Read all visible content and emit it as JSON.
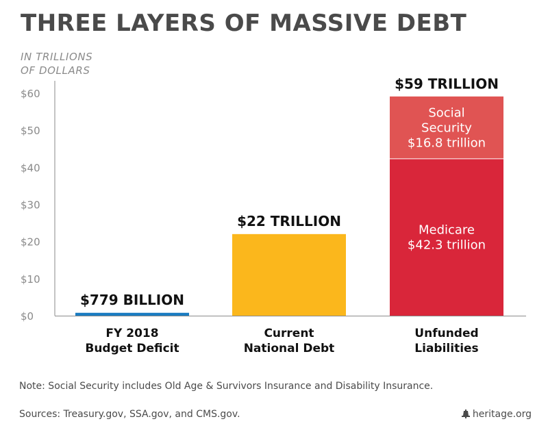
{
  "title": "THREE LAYERS OF MASSIVE DEBT",
  "unit_line1": "IN TRILLIONS",
  "unit_line2": "OF DOLLARS",
  "note": "Note: Social Security includes Old Age & Survivors Insurance and Disability Insurance.",
  "sources": "Sources: Treasury.gov, SSA.gov, and CMS.gov.",
  "brand": "heritage.org",
  "chart_data": {
    "type": "bar",
    "stacked": true,
    "ylim": [
      0,
      60
    ],
    "yticks": [
      0,
      10,
      20,
      30,
      40,
      50,
      60
    ],
    "ytick_labels": [
      "$0",
      "$10",
      "$20",
      "$30",
      "$40",
      "$50",
      "$60"
    ],
    "grid": false,
    "categories": [
      {
        "line1": "FY 2018",
        "line2": "Budget Deficit"
      },
      {
        "line1": "Current",
        "line2": "National Debt"
      },
      {
        "line1": "Unfunded",
        "line2": "Liabilities"
      }
    ],
    "totals": [
      0.779,
      22,
      59
    ],
    "total_labels": [
      "$779 BILLION",
      "$22 TRILLION",
      "$59 TRILLION"
    ],
    "segments": [
      [
        {
          "value": 0.779,
          "color": "#1a7cc1",
          "label": []
        }
      ],
      [
        {
          "value": 22,
          "color": "#fbb71c",
          "label": []
        }
      ],
      [
        {
          "value": 42.3,
          "color": "#d9263a",
          "label": [
            "Medicare",
            "$42.3 trillion"
          ]
        },
        {
          "value": 16.8,
          "color": "#e05453",
          "label": [
            "Social",
            "Security",
            "$16.8 trillion"
          ]
        }
      ]
    ]
  }
}
